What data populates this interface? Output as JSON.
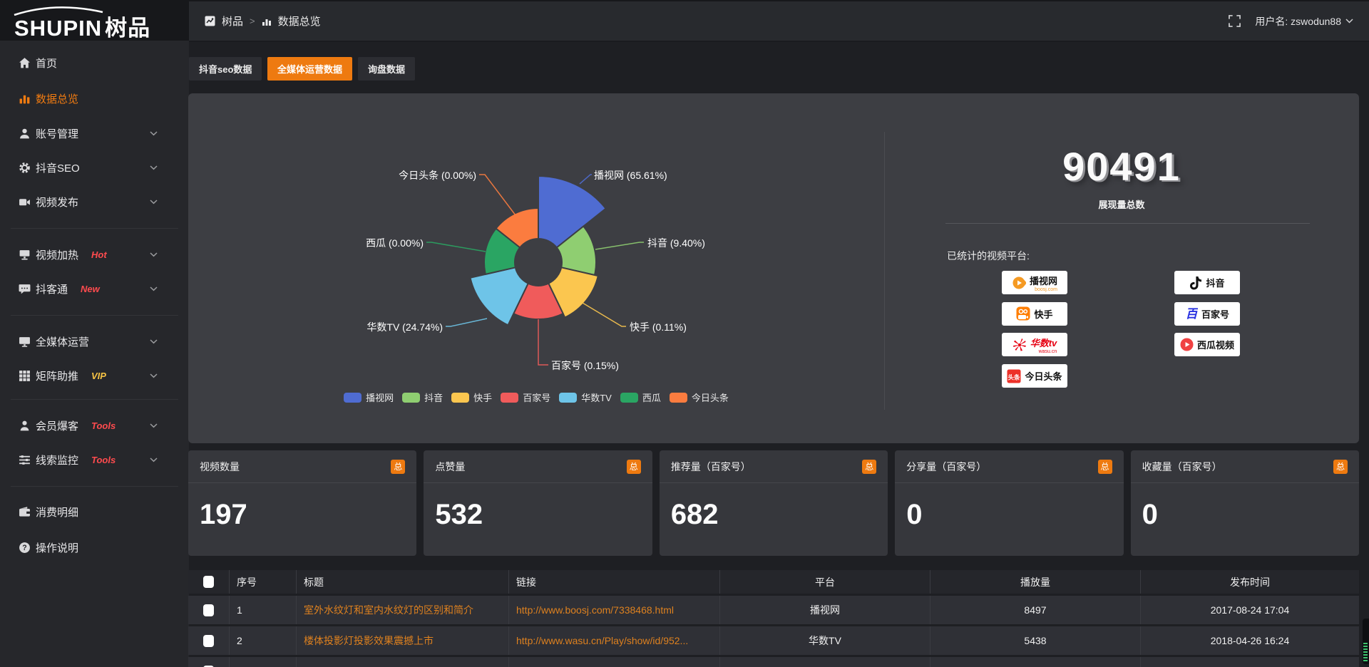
{
  "topbar": {
    "logo_main": "SHUPIN",
    "logo_sub": "树品",
    "breadcrumb": [
      "树品",
      "数据总览"
    ],
    "username": "用户名: zswodun88"
  },
  "sidebar": {
    "items": [
      {
        "label": "首页",
        "icon": "home"
      },
      {
        "label": "数据总览",
        "icon": "chart",
        "active": true
      },
      {
        "label": "账号管理",
        "icon": "user",
        "chevron": true
      },
      {
        "label": "抖音SEO",
        "icon": "gear",
        "chevron": true
      },
      {
        "label": "视频发布",
        "icon": "publish",
        "chevron": true
      },
      {
        "label": "视频加热",
        "icon": "heat",
        "tag": "Hot",
        "tagColor": "#ff4b4e",
        "chevron": true
      },
      {
        "label": "抖客通",
        "icon": "comment",
        "tag": "New",
        "tagColor": "#ff4b4e",
        "chevron": true
      },
      {
        "label": "全媒体运营",
        "icon": "monitor",
        "chevron": true
      },
      {
        "label": "矩阵助推",
        "icon": "grid",
        "tag": "VIP",
        "tagColor": "#f6c344",
        "chevron": true
      },
      {
        "label": "会员爆客",
        "icon": "person",
        "tag": "Tools",
        "tagColor": "#ff4b4e",
        "chevron": true
      },
      {
        "label": "线索监控",
        "icon": "sliders",
        "tag": "Tools",
        "tagColor": "#ff4b4e",
        "chevron": true
      },
      {
        "label": "消费明细",
        "icon": "wallet"
      },
      {
        "label": "操作说明",
        "icon": "help"
      }
    ]
  },
  "tabs": [
    {
      "label": "抖音seo数据",
      "active": false
    },
    {
      "label": "全媒体运营数据",
      "active": true
    },
    {
      "label": "询盘数据",
      "active": false
    }
  ],
  "chart_data": {
    "type": "pie",
    "rose": true,
    "items": [
      {
        "name": "播视网",
        "value": 65.61,
        "label": "播视网 (65.61%)",
        "color": "#4f6cd2"
      },
      {
        "name": "抖音",
        "value": 9.4,
        "label": "抖音 (9.40%)",
        "color": "#8fce71"
      },
      {
        "name": "快手",
        "value": 0.11,
        "label": "快手 (0.11%)",
        "color": "#fbc64f"
      },
      {
        "name": "百家号",
        "value": 0.15,
        "label": "百家号 (0.15%)",
        "color": "#f05b5b"
      },
      {
        "name": "华数TV",
        "value": 24.74,
        "label": "华数TV (24.74%)",
        "color": "#6ec4e8"
      },
      {
        "name": "西瓜",
        "value": 0.0,
        "label": "西瓜 (0.00%)",
        "color": "#2aa563"
      },
      {
        "name": "今日头条",
        "value": 0.0,
        "label": "今日头条 (0.00%)",
        "color": "#fb7c3f"
      }
    ],
    "legend_position": "bottom"
  },
  "summary": {
    "total": "90491",
    "total_label": "展现量总数",
    "platforms_label": "已统计的视频平台:",
    "platforms": [
      {
        "name": "播视网",
        "sub": "boosj.com",
        "logo": "boosj"
      },
      {
        "name": "抖音",
        "logo": "douyin"
      },
      {
        "name": "快手",
        "logo": "kuaishou"
      },
      {
        "name": "百家号",
        "logo": "baijiahao"
      },
      {
        "name": "华数tv",
        "sub": "wasu.cn",
        "logo": "wasu"
      },
      {
        "name": "西瓜视频",
        "logo": "xigua"
      },
      {
        "name": "今日头条",
        "logo": "toutiao"
      }
    ]
  },
  "cards": [
    {
      "title": "视频数量",
      "badge": "总",
      "value": "197"
    },
    {
      "title": "点赞量",
      "badge": "总",
      "value": "532"
    },
    {
      "title": "推荐量（百家号）",
      "badge": "总",
      "value": "682"
    },
    {
      "title": "分享量（百家号）",
      "badge": "总",
      "value": "0"
    },
    {
      "title": "收藏量（百家号）",
      "badge": "总",
      "value": "0"
    }
  ],
  "table": {
    "headers": [
      "序号",
      "标题",
      "链接",
      "平台",
      "播放量",
      "发布时间"
    ],
    "rows": [
      {
        "no": "1",
        "title": "室外水纹灯和室内水纹灯的区别和简介",
        "link": "http://www.boosj.com/7338468.html",
        "platform": "播视网",
        "plays": "8497",
        "time": "2017-08-24 17:04"
      },
      {
        "no": "2",
        "title": "楼体投影灯投影效果震撼上市",
        "link": "http://www.wasu.cn/Play/show/id/952...",
        "platform": "华数TV",
        "plays": "5438",
        "time": "2018-04-26 16:24"
      },
      {
        "no": "",
        "title": "",
        "link": "",
        "platform": "",
        "plays": "",
        "time": ""
      }
    ]
  }
}
